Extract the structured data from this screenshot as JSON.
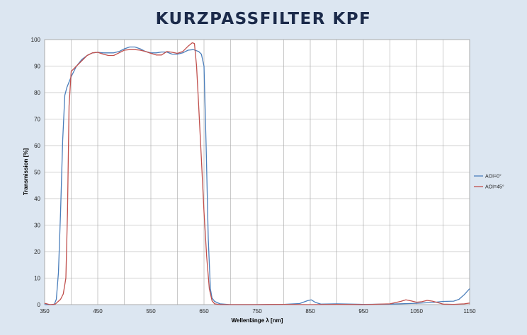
{
  "title": "KURZPASSFILTER KPF",
  "colors": {
    "background": "#dce6f1",
    "plot_bg": "#ffffff",
    "grid": "#a6a6a6",
    "aoi0": "#4a7ebb",
    "aoi45": "#c0504d",
    "title": "#1b2a4a"
  },
  "chart_data": {
    "type": "line",
    "title": "KURZPASSFILTER KPF",
    "xlabel": "Wellenlänge λ [nm]",
    "ylabel": "Transmission [%]",
    "xlim": [
      350,
      1150
    ],
    "ylim": [
      0,
      100
    ],
    "xticks": [
      350,
      450,
      550,
      650,
      750,
      850,
      950,
      1050,
      1150
    ],
    "yticks": [
      0,
      10,
      20,
      30,
      40,
      50,
      60,
      70,
      80,
      90,
      100
    ],
    "grid": true,
    "legend_position": "right",
    "series": [
      {
        "name": "AOI=0°",
        "color": "#4a7ebb",
        "x": [
          350,
          360,
          368,
          372,
          376,
          380,
          384,
          388,
          392,
          400,
          410,
          420,
          430,
          440,
          450,
          460,
          470,
          480,
          490,
          500,
          510,
          520,
          530,
          540,
          550,
          560,
          570,
          580,
          590,
          600,
          610,
          620,
          630,
          640,
          645,
          650,
          654,
          658,
          662,
          665,
          670,
          680,
          700,
          750,
          800,
          830,
          845,
          852,
          860,
          870,
          900,
          950,
          1000,
          1050,
          1080,
          1100,
          1120,
          1130,
          1140,
          1150
        ],
        "y": [
          0,
          0,
          0,
          2,
          12,
          35,
          62,
          79,
          82,
          86,
          90,
          92.5,
          94,
          95,
          95.2,
          95,
          95,
          95,
          95.5,
          96.5,
          97.2,
          97.2,
          96.5,
          95.5,
          95,
          95,
          95.3,
          95.3,
          94.5,
          94.5,
          95,
          96,
          96.2,
          95.5,
          94.5,
          90,
          60,
          25,
          6,
          2.5,
          1.2,
          0.3,
          0,
          0,
          0.1,
          0.4,
          1.5,
          1.8,
          0.8,
          0.2,
          0.3,
          0.1,
          0.2,
          0.5,
          0.8,
          1.2,
          1.3,
          2,
          3.8,
          6
        ]
      },
      {
        "name": "AOI=45°",
        "color": "#c0504d",
        "x": [
          350,
          360,
          370,
          380,
          385,
          390,
          393,
          396,
          400,
          410,
          420,
          430,
          440,
          450,
          460,
          470,
          480,
          490,
          500,
          510,
          520,
          530,
          540,
          550,
          560,
          570,
          580,
          590,
          600,
          610,
          620,
          628,
          632,
          636,
          640,
          645,
          650,
          655,
          660,
          665,
          670,
          680,
          700,
          750,
          800,
          850,
          900,
          950,
          1000,
          1020,
          1030,
          1040,
          1050,
          1060,
          1070,
          1080,
          1100,
          1120,
          1140,
          1150
        ],
        "y": [
          0.5,
          0,
          0.2,
          2,
          4,
          10,
          35,
          75,
          88,
          90,
          92,
          94,
          95,
          95.2,
          94.5,
          94,
          94,
          95,
          96,
          96.2,
          96.2,
          96,
          95.5,
          94.8,
          94.2,
          94.2,
          95.5,
          95.2,
          94.8,
          95.5,
          97.5,
          98.8,
          98.5,
          90,
          75,
          55,
          35,
          18,
          6,
          1.5,
          0.3,
          0,
          0,
          0,
          0.1,
          0,
          0.1,
          0,
          0.3,
          1.2,
          1.8,
          1.4,
          0.9,
          1.1,
          1.6,
          1.3,
          0.2,
          0.1,
          0.3,
          0.6
        ]
      }
    ]
  }
}
